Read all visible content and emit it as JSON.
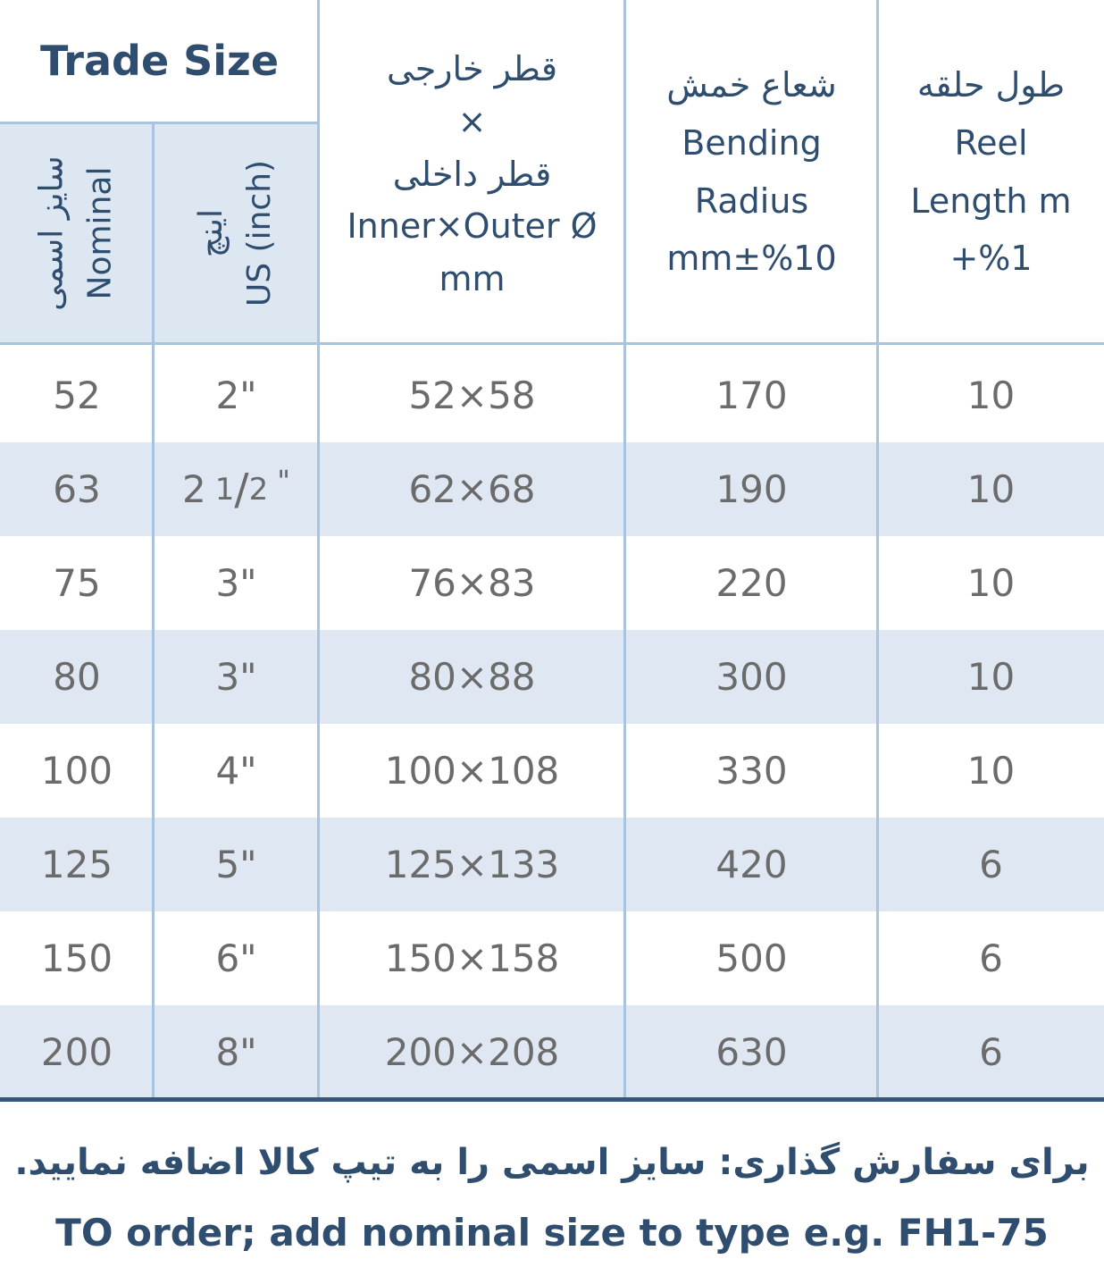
{
  "header": {
    "trade_size": "Trade Size",
    "nominal": [
      "سایز اسمی",
      "Nominal"
    ],
    "us": [
      "اینچ",
      "US (inch)"
    ],
    "diameter": [
      "قطر خارجی",
      "×",
      "قطر داخلی",
      "Inner×Outer Ø",
      "mm"
    ],
    "bending": [
      "شعاع خمش",
      "Bending",
      "Radius",
      "mm±%10"
    ],
    "reel": [
      "طول حلقه",
      "Reel",
      "Length m",
      "+%1"
    ]
  },
  "table": {
    "rows": [
      [
        "52",
        "2\"",
        "52×58",
        "170",
        "10"
      ],
      [
        "63",
        {
          "whole": "2",
          "num": "1",
          "den": "2",
          "mark": "\""
        },
        "62×68",
        "190",
        "10"
      ],
      [
        "75",
        "3\"",
        "76×83",
        "220",
        "10"
      ],
      [
        "80",
        "3\"",
        "80×88",
        "300",
        "10"
      ],
      [
        "100",
        "4\"",
        "100×108",
        "330",
        "10"
      ],
      [
        "125",
        "5\"",
        "125×133",
        "420",
        "6"
      ],
      [
        "150",
        "6\"",
        "150×158",
        "500",
        "6"
      ],
      [
        "200",
        "8\"",
        "200×208",
        "630",
        "6"
      ]
    ]
  },
  "footer": {
    "persian": "برای سفارش گذاری: سایز اسمی را به تیپ کالا اضافه نمایید.",
    "english": "TO order; add nominal size to type e.g. FH1-75"
  }
}
